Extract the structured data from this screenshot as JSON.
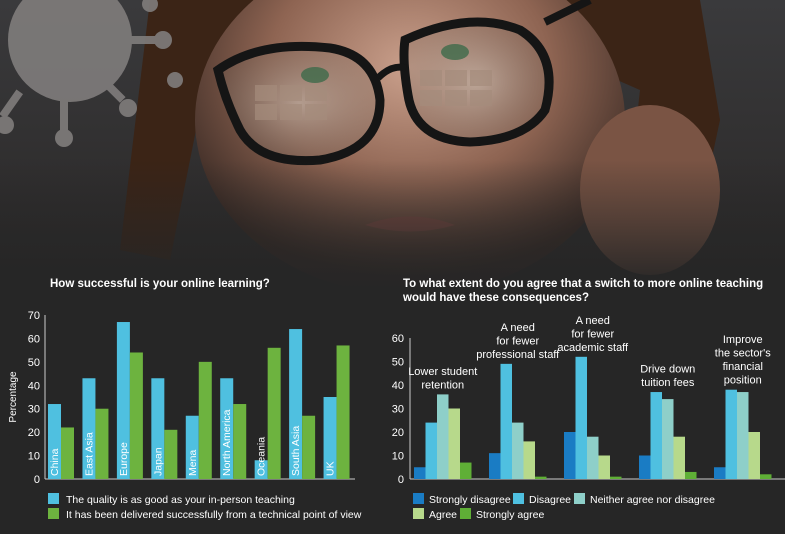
{
  "chart_data": [
    {
      "type": "bar",
      "title": "How successful is your online learning?",
      "xlabel": "",
      "ylabel": "Percentage",
      "ylim": [
        0,
        70
      ],
      "yticks": [
        0,
        10,
        20,
        30,
        40,
        50,
        60,
        70
      ],
      "categories": [
        "China",
        "East Asia",
        "Europe",
        "Japan",
        "Mena",
        "North America",
        "Oceania",
        "South Asia",
        "UK"
      ],
      "series": [
        {
          "name": "The quality is as good as your in-person teaching",
          "color": "#4fc0e0",
          "values": [
            32,
            43,
            67,
            43,
            27,
            43,
            8,
            64,
            35
          ]
        },
        {
          "name": "It has been delivered successfully from a technical point of view",
          "color": "#6db33f",
          "values": [
            22,
            30,
            54,
            21,
            50,
            32,
            56,
            27,
            57
          ]
        }
      ]
    },
    {
      "type": "bar",
      "title": "To what extent do you agree that a switch to more online teaching would have these consequences?",
      "title_lines": [
        "To what extent do you agree that a switch to more online teaching",
        "would have these consequences?"
      ],
      "xlabel": "",
      "ylabel": "Percentage",
      "ylim": [
        0,
        60
      ],
      "yticks": [
        0,
        10,
        20,
        30,
        40,
        50,
        60
      ],
      "categories": [
        [
          "Lower student",
          "retention"
        ],
        [
          "A need",
          "for fewer",
          "professional staff"
        ],
        [
          "A need",
          "for fewer",
          "academic staff"
        ],
        [
          "Drive down",
          "tuition fees"
        ],
        [
          "Improve",
          "the sector's",
          "financial",
          "position"
        ]
      ],
      "series": [
        {
          "name": "Strongly disagree",
          "color": "#1a7cc4",
          "values": [
            5,
            11,
            20,
            10,
            5
          ]
        },
        {
          "name": "Disagree",
          "color": "#4fc0e0",
          "values": [
            24,
            49,
            52,
            37,
            38
          ]
        },
        {
          "name": "Neither agree nor disagree",
          "color": "#8ecfc9",
          "values": [
            36,
            24,
            18,
            34,
            37
          ]
        },
        {
          "name": "Agree",
          "color": "#b7d98b",
          "values": [
            30,
            16,
            10,
            18,
            20
          ]
        },
        {
          "name": "Strongly agree",
          "color": "#5faf36",
          "values": [
            7,
            1,
            1,
            3,
            2
          ]
        }
      ]
    }
  ]
}
